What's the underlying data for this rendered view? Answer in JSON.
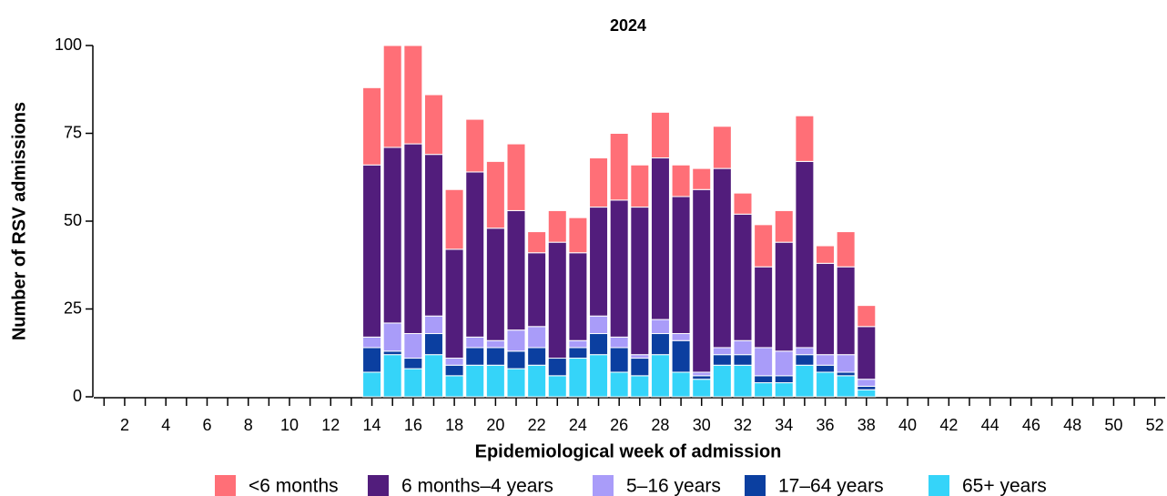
{
  "chart_data": {
    "type": "stacked_bar",
    "title": "2024",
    "x_label": "Epidemiological week of admission",
    "y_label": "Number of RSV admissions",
    "categories": [
      null,
      2,
      null,
      4,
      null,
      6,
      null,
      8,
      null,
      10,
      null,
      12,
      null,
      14,
      null,
      16,
      null,
      18,
      null,
      20,
      null,
      22,
      null,
      24,
      null,
      26,
      null,
      28,
      null,
      30,
      null,
      32,
      null,
      34,
      null,
      36,
      null,
      38,
      null,
      40,
      null,
      42,
      null,
      44,
      null,
      46,
      null,
      48,
      null,
      50,
      null,
      52
    ],
    "ylim": [
      0,
      100
    ],
    "yticks": [
      0,
      25,
      50,
      75,
      100
    ],
    "series": [
      {
        "name": "65+ years",
        "color": "#35d4f9",
        "values": [
          null,
          null,
          null,
          null,
          null,
          null,
          null,
          null,
          null,
          null,
          null,
          null,
          null,
          7,
          12,
          8,
          12,
          6,
          9,
          9,
          8,
          9,
          6,
          11,
          12,
          7,
          6,
          12,
          7,
          5,
          9,
          9,
          4,
          4,
          9,
          7,
          6,
          2,
          null,
          null,
          null,
          null,
          null,
          null,
          null,
          null,
          null,
          null,
          null,
          null,
          null,
          null
        ]
      },
      {
        "name": "17–64 years",
        "color": "#0b3fa0",
        "values": [
          null,
          null,
          null,
          null,
          null,
          null,
          null,
          null,
          null,
          null,
          null,
          null,
          null,
          7,
          1,
          3,
          6,
          3,
          5,
          5,
          5,
          5,
          5,
          3,
          6,
          7,
          5,
          6,
          9,
          1,
          3,
          3,
          2,
          2,
          3,
          2,
          1,
          1,
          null,
          null,
          null,
          null,
          null,
          null,
          null,
          null,
          null,
          null,
          null,
          null,
          null,
          null
        ]
      },
      {
        "name": "5–16 years",
        "color": "#a99cf9",
        "values": [
          null,
          null,
          null,
          null,
          null,
          null,
          null,
          null,
          null,
          null,
          null,
          null,
          null,
          3,
          8,
          7,
          5,
          2,
          3,
          2,
          6,
          6,
          0,
          2,
          5,
          3,
          1,
          4,
          2,
          1,
          2,
          4,
          8,
          7,
          2,
          3,
          5,
          2,
          null,
          null,
          null,
          null,
          null,
          null,
          null,
          null,
          null,
          null,
          null,
          null,
          null,
          null
        ]
      },
      {
        "name": "6 months–4 years",
        "color": "#521d7c",
        "values": [
          null,
          null,
          null,
          null,
          null,
          null,
          null,
          null,
          null,
          null,
          null,
          null,
          null,
          49,
          50,
          54,
          46,
          31,
          47,
          32,
          34,
          21,
          33,
          25,
          31,
          39,
          42,
          46,
          39,
          52,
          51,
          36,
          23,
          31,
          53,
          26,
          25,
          15,
          null,
          null,
          null,
          null,
          null,
          null,
          null,
          null,
          null,
          null,
          null,
          null,
          null,
          null
        ]
      },
      {
        "name": "<6 months",
        "color": "#ff6f77",
        "values": [
          null,
          null,
          null,
          null,
          null,
          null,
          null,
          null,
          null,
          null,
          null,
          null,
          null,
          22,
          29,
          28,
          17,
          17,
          15,
          19,
          19,
          6,
          9,
          10,
          14,
          19,
          12,
          13,
          9,
          6,
          12,
          6,
          12,
          9,
          13,
          5,
          10,
          6,
          null,
          null,
          null,
          null,
          null,
          null,
          null,
          null,
          null,
          null,
          null,
          null,
          null,
          null
        ]
      }
    ]
  }
}
